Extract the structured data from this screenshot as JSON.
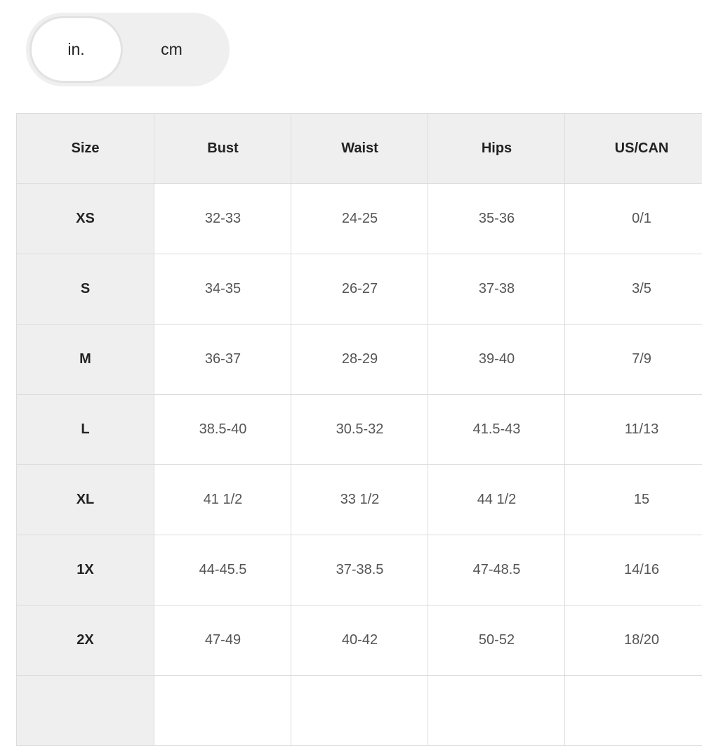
{
  "toggle": {
    "options": [
      "in.",
      "cm"
    ]
  },
  "table": {
    "headers": [
      "Size",
      "Bust",
      "Waist",
      "Hips",
      "US/CAN"
    ],
    "rows": [
      [
        "XS",
        "32-33",
        "24-25",
        "35-36",
        "0/1"
      ],
      [
        "S",
        "34-35",
        "26-27",
        "37-38",
        "3/5"
      ],
      [
        "M",
        "36-37",
        "28-29",
        "39-40",
        "7/9"
      ],
      [
        "L",
        "38.5-40",
        "30.5-32",
        "41.5-43",
        "11/13"
      ],
      [
        "XL",
        "41 1/2",
        "33 1/2",
        "44 1/2",
        "15"
      ],
      [
        "1X",
        "44-45.5",
        "37-38.5",
        "47-48.5",
        "14/16"
      ],
      [
        "2X",
        "47-49",
        "40-42",
        "50-52",
        "18/20"
      ]
    ]
  }
}
